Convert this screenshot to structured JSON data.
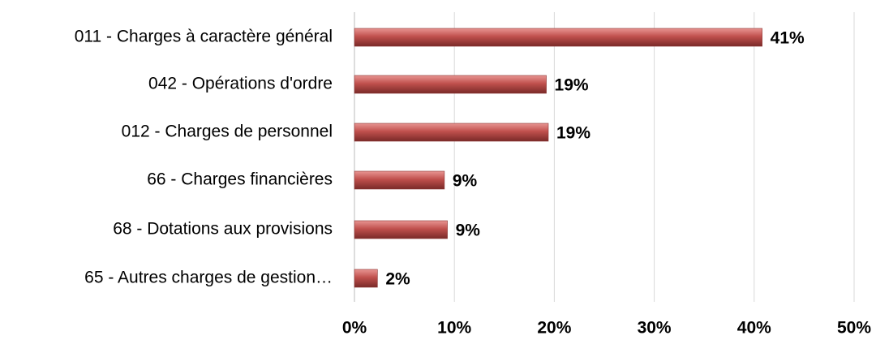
{
  "chart_data": {
    "type": "barh",
    "categories": [
      "011 - Charges à caractère général",
      "042 - Opérations d'ordre",
      "012 - Charges de personnel",
      "66 - Charges financières",
      "68 - Dotations aux provisions",
      "65 - Autres charges de gestion…"
    ],
    "values": [
      40.8,
      19.2,
      19.4,
      9.0,
      9.3,
      2.3
    ],
    "value_labels": [
      "41%",
      "19%",
      "19%",
      "9%",
      "9%",
      "2%"
    ],
    "color": "#c0504d",
    "xlim": [
      0,
      50
    ],
    "xticks": [
      {
        "value": 0,
        "label": "0%"
      },
      {
        "value": 10,
        "label": "10%"
      },
      {
        "value": 20,
        "label": "20%"
      },
      {
        "value": 30,
        "label": "30%"
      },
      {
        "value": 40,
        "label": "40%"
      },
      {
        "value": 50,
        "label": "50%"
      }
    ],
    "grid": true
  }
}
